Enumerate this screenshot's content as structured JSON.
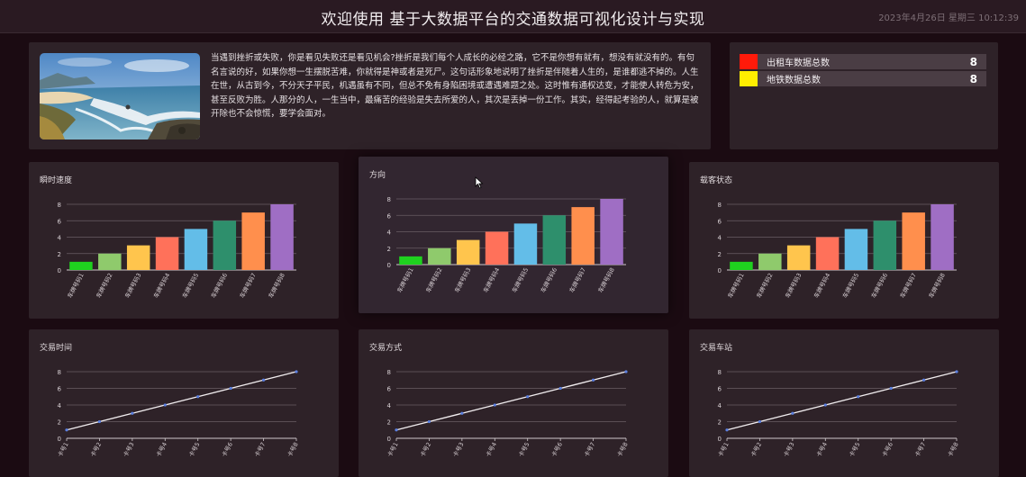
{
  "header": {
    "title": "欢迎使用 基于大数据平台的交通数据可视化设计与实现",
    "datetime": "2023年4月26日 星期三 10:12:39"
  },
  "intro": {
    "image": "coastal-landscape-photo",
    "text": "当遇到挫折或失败，你是看见失败还是看见机会?挫折是我们每个人成长的必经之路，它不是你想有就有，想没有就没有的。有句名言说的好，如果你想一生摆脱苦难，你就得是神或者是死尸。这句话形象地说明了挫折是伴随着人生的，是谁都逃不掉的。人生在世，从古到今，不分天子平民，机遇虽有不同，但总不免有身陷困境或遭遇难题之处。这时惟有通权达变，才能使人转危为安，甚至反败为胜。人那分的人，一生当中，最痛苦的经验是失去所爱的人，其次是丢掉一份工作。其实，经得起考验的人，就算是被开除也不会惊慌，要学会面对。"
  },
  "stats": {
    "rows": [
      {
        "label": "出租车数据总数",
        "value": "8",
        "color": "#ff1a0a"
      },
      {
        "label": "地铁数据总数",
        "value": "8",
        "color": "#ffee00"
      }
    ]
  },
  "colors": {
    "bar_palette": [
      "#1fd11f",
      "#8fca6c",
      "#ffc54d",
      "#ff715a",
      "#63bde8",
      "#2e8f6c",
      "#ff8f4d",
      "#9f6ec4"
    ]
  },
  "chart_data": [
    {
      "type": "bar",
      "title": "瞬时速度",
      "categories": [
        "车牌号码1",
        "车牌号码2",
        "车牌号码3",
        "车牌号码4",
        "车牌号码5",
        "车牌号码6",
        "车牌号码7",
        "车牌号码8"
      ],
      "values": [
        1,
        2,
        3,
        4,
        5,
        6,
        7,
        8
      ],
      "yticks": [
        "0",
        "2",
        "4",
        "6",
        "8"
      ],
      "ylim": [
        0,
        8
      ],
      "grid": true
    },
    {
      "type": "bar",
      "title": "方向",
      "categories": [
        "车牌号码1",
        "车牌号码2",
        "车牌号码3",
        "车牌号码4",
        "车牌号码5",
        "车牌号码6",
        "车牌号码7",
        "车牌号码8"
      ],
      "values": [
        1,
        2,
        3,
        4,
        5,
        6,
        7,
        8
      ],
      "yticks": [
        "0",
        "2",
        "4",
        "6",
        "8"
      ],
      "ylim": [
        0,
        8
      ],
      "grid": true
    },
    {
      "type": "bar",
      "title": "载客状态",
      "categories": [
        "车牌号码1",
        "车牌号码2",
        "车牌号码3",
        "车牌号码4",
        "车牌号码5",
        "车牌号码6",
        "车牌号码7",
        "车牌号码8"
      ],
      "values": [
        1,
        2,
        3,
        4,
        5,
        6,
        7,
        8
      ],
      "yticks": [
        "0",
        "2",
        "4",
        "6",
        "8"
      ],
      "ylim": [
        0,
        8
      ],
      "grid": true
    },
    {
      "type": "line",
      "title": "交易时间",
      "categories": [
        "卡号1",
        "卡号2",
        "卡号3",
        "卡号4",
        "卡号5",
        "卡号6",
        "卡号7",
        "卡号8"
      ],
      "values": [
        1,
        2,
        3,
        4,
        5,
        6,
        7,
        8
      ],
      "yticks": [
        "0",
        "2",
        "4",
        "6",
        "8"
      ],
      "ylim": [
        0,
        8
      ],
      "grid": true
    },
    {
      "type": "line",
      "title": "交易方式",
      "categories": [
        "卡号1",
        "卡号2",
        "卡号3",
        "卡号4",
        "卡号5",
        "卡号6",
        "卡号7",
        "卡号8"
      ],
      "values": [
        1,
        2,
        3,
        4,
        5,
        6,
        7,
        8
      ],
      "yticks": [
        "0",
        "2",
        "4",
        "6",
        "8"
      ],
      "ylim": [
        0,
        8
      ],
      "grid": true
    },
    {
      "type": "line",
      "title": "交易车站",
      "categories": [
        "卡号1",
        "卡号2",
        "卡号3",
        "卡号4",
        "卡号5",
        "卡号6",
        "卡号7",
        "卡号8"
      ],
      "values": [
        1,
        2,
        3,
        4,
        5,
        6,
        7,
        8
      ],
      "yticks": [
        "0",
        "2",
        "4",
        "6",
        "8"
      ],
      "ylim": [
        0,
        8
      ],
      "grid": true
    }
  ]
}
